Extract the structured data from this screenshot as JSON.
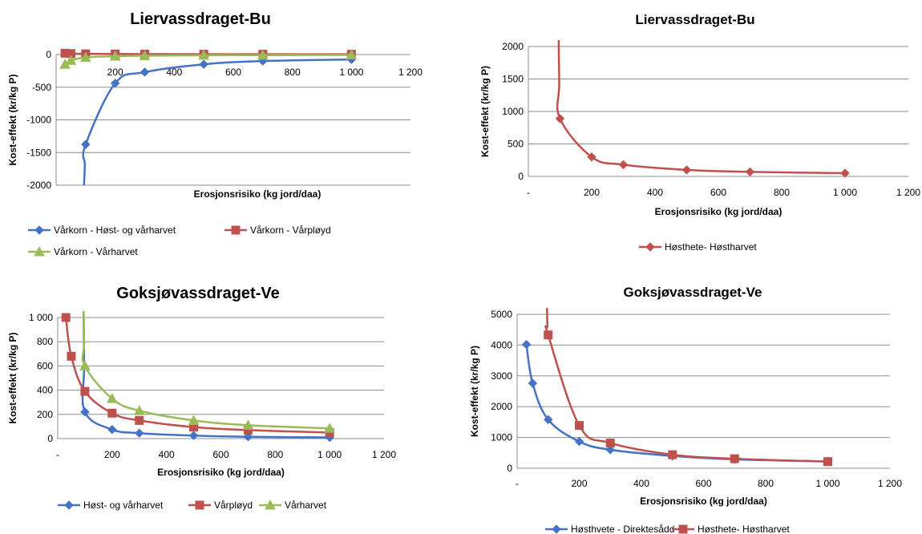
{
  "chart_data": [
    {
      "type": "line",
      "title": "Liervassdraget-Bu",
      "xlabel": "Erosjonsrisiko (kg jord/daa)",
      "ylabel": "Kost-effekt (kr/kg P)",
      "xlim": [
        0,
        1200
      ],
      "ylim": [
        -2000,
        0
      ],
      "xticks": [
        "200",
        "400",
        "600",
        "800",
        "1 000",
        "1 200"
      ],
      "yticks": [
        "-2000",
        "-1500",
        "-1000",
        "-500",
        "0"
      ],
      "series": [
        {
          "name": "Vårkorn - Høst- og vårharvet",
          "color": "#4472C4",
          "marker": "diamond",
          "x": [
            100,
            200,
            300,
            500,
            700,
            1000
          ],
          "y": [
            -1375,
            -440,
            -270,
            -150,
            -100,
            -75
          ]
        },
        {
          "name": "Vårkorn - Vårpløyd",
          "color": "#C0504D",
          "marker": "square",
          "x": [
            30,
            50,
            100,
            200,
            300,
            500,
            700,
            1000
          ],
          "y": [
            20,
            15,
            10,
            8,
            6,
            5,
            5,
            4
          ]
        },
        {
          "name": "Vårkorn - Vårharvet",
          "color": "#9BBB59",
          "marker": "triangle",
          "x": [
            30,
            50,
            100,
            200,
            300,
            500,
            700,
            1000
          ],
          "y": [
            -150,
            -90,
            -45,
            -25,
            -18,
            -12,
            -9,
            -6
          ]
        }
      ]
    },
    {
      "type": "line",
      "title": "Liervassdraget-Bu",
      "xlabel": "Erosjonsrisiko (kg jord/daa)",
      "ylabel": "Kost-effekt (kr/kg P)",
      "xlim": [
        0,
        1200
      ],
      "ylim": [
        0,
        2000
      ],
      "xticks": [
        "-",
        "200",
        "400",
        "600",
        "800",
        "1 000",
        "1 200"
      ],
      "yticks": [
        "0",
        "500",
        "1000",
        "1500",
        "2000"
      ],
      "series": [
        {
          "name": "Høsthete- Høstharvet",
          "color": "#C0504D",
          "marker": "diamond",
          "x": [
            100,
            200,
            300,
            500,
            700,
            1000
          ],
          "y": [
            890,
            300,
            180,
            100,
            70,
            50
          ]
        }
      ]
    },
    {
      "type": "line",
      "title": "Goksjøvassdraget-Ve",
      "xlabel": "Erosjonsrisiko (kg jord/daa)",
      "ylabel": "Kost-effekt (kr/kg P)",
      "xlim": [
        0,
        1200
      ],
      "ylim": [
        0,
        1000
      ],
      "xticks": [
        "-",
        "200",
        "400",
        "600",
        "800",
        "1 000",
        "1 200"
      ],
      "yticks": [
        "0",
        "200",
        "400",
        "600",
        "800",
        "1 000"
      ],
      "series": [
        {
          "name": "Høst- og vårharvet",
          "color": "#4472C4",
          "marker": "diamond",
          "x": [
            100,
            200,
            300,
            500,
            700,
            1000
          ],
          "y": [
            220,
            75,
            45,
            25,
            15,
            10
          ]
        },
        {
          "name": "Vårpløyd",
          "color": "#C0504D",
          "marker": "square",
          "x": [
            30,
            50,
            100,
            200,
            300,
            500,
            700,
            1000
          ],
          "y": [
            1000,
            680,
            390,
            210,
            150,
            95,
            70,
            50
          ]
        },
        {
          "name": "Vårharvet",
          "color": "#9BBB59",
          "marker": "triangle",
          "x": [
            100,
            200,
            300,
            500,
            700,
            1000
          ],
          "y": [
            600,
            330,
            230,
            150,
            110,
            85
          ]
        }
      ]
    },
    {
      "type": "line",
      "title": "Goksjøvassdraget-Ve",
      "xlabel": "Erosjonsrisiko (kg jord/daa)",
      "ylabel": "Kost-effekt (kr/kg P)",
      "xlim": [
        0,
        1200
      ],
      "ylim": [
        0,
        5000
      ],
      "xticks": [
        "-",
        "200",
        "400",
        "600",
        "800",
        "1 000",
        "1 200"
      ],
      "yticks": [
        "0",
        "1000",
        "2000",
        "3000",
        "4000",
        "5000"
      ],
      "series": [
        {
          "name": "Høsthvete - Direktesådd",
          "color": "#4472C4",
          "marker": "diamond",
          "x": [
            30,
            50,
            100,
            200,
            300,
            500,
            700,
            1000
          ],
          "y": [
            4020,
            2760,
            1580,
            870,
            600,
            400,
            290,
            220
          ]
        },
        {
          "name": "Høsthete- Høstharvet",
          "color": "#C0504D",
          "marker": "square",
          "x": [
            100,
            200,
            300,
            500,
            700,
            1000
          ],
          "y": [
            4330,
            1390,
            820,
            440,
            310,
            215
          ]
        }
      ]
    }
  ]
}
